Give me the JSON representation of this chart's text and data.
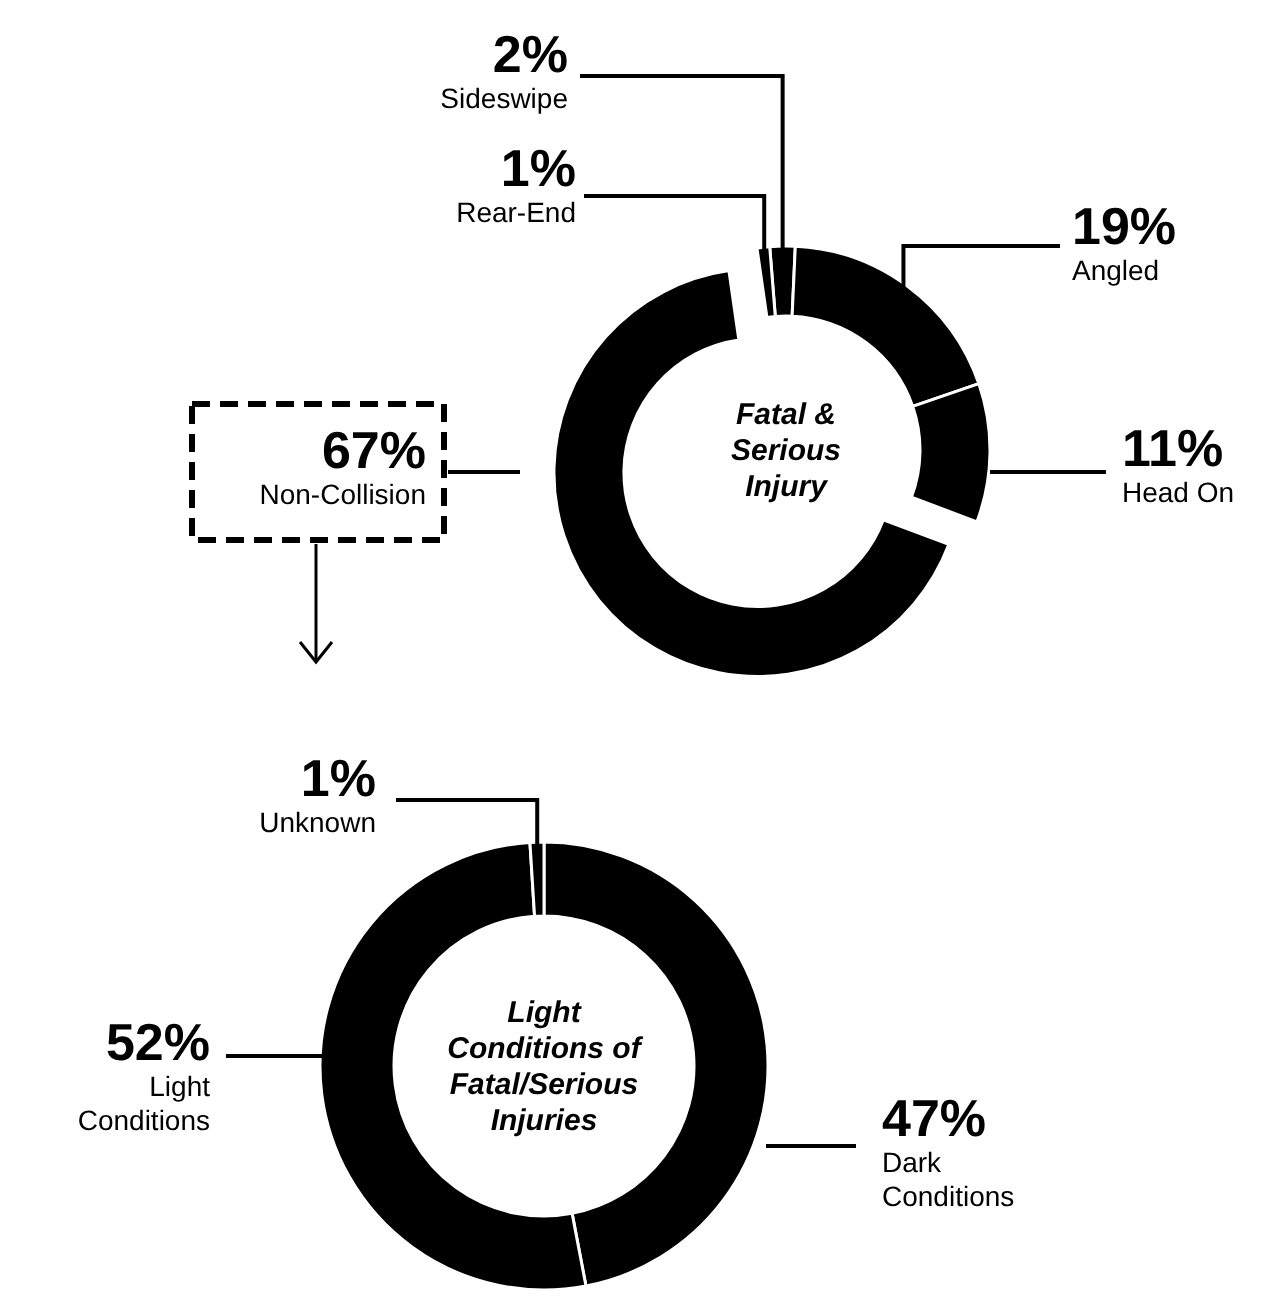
{
  "chart_data": [
    {
      "type": "donut",
      "title": "Fatal & Serious Injury",
      "categories": [
        "Sideswipe",
        "Angled",
        "Head On",
        "Non-Collision",
        "Rear-End"
      ],
      "values": [
        2,
        19,
        11,
        67,
        1
      ],
      "value_labels": [
        "2%",
        "19%",
        "11%",
        "67%",
        "1%"
      ],
      "colors": [
        "#000000",
        "#000000",
        "#000000",
        "#000000",
        "#000000"
      ]
    },
    {
      "type": "donut",
      "title": "Light Conditions of Fatal/Serious Injuries",
      "categories": [
        "Dark Conditions",
        "Light Conditions",
        "Unknown"
      ],
      "values": [
        47,
        52,
        1
      ],
      "value_labels": [
        "47%",
        "52%",
        "1%"
      ],
      "colors": [
        "#000000",
        "#000000",
        "#000000"
      ]
    }
  ]
}
